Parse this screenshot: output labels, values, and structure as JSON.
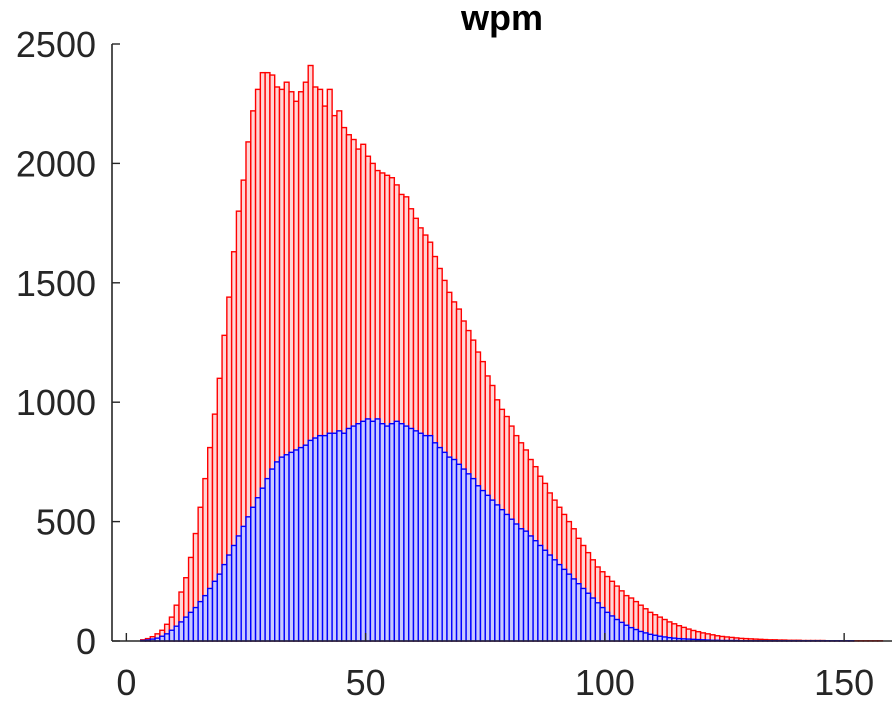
{
  "chart_data": {
    "type": "bar",
    "title": "wpm",
    "xlabel": "",
    "ylabel": "",
    "xlim": [
      -3,
      160
    ],
    "ylim": [
      0,
      2500
    ],
    "xticks": [
      0,
      50,
      100,
      150
    ],
    "yticks": [
      0,
      500,
      1000,
      1500,
      2000,
      2500
    ],
    "bin_width": 1,
    "grid": false,
    "legend": "none",
    "overlay": true,
    "x_start": 3,
    "series": [
      {
        "color": "#ff0000",
        "fill": "#ffd6d6",
        "values": [
          5,
          10,
          18,
          30,
          45,
          70,
          100,
          150,
          205,
          265,
          350,
          450,
          560,
          680,
          810,
          950,
          1100,
          1280,
          1440,
          1630,
          1800,
          1930,
          2090,
          2220,
          2310,
          2380,
          2380,
          2370,
          2320,
          2310,
          2340,
          2300,
          2260,
          2300,
          2340,
          2410,
          2320,
          2310,
          2240,
          2310,
          2200,
          2220,
          2150,
          2120,
          2100,
          2060,
          2080,
          2030,
          2000,
          1970,
          1960,
          1950,
          1940,
          1910,
          1870,
          1860,
          1810,
          1770,
          1730,
          1700,
          1670,
          1610,
          1560,
          1510,
          1460,
          1420,
          1390,
          1340,
          1300,
          1260,
          1210,
          1170,
          1110,
          1070,
          1010,
          970,
          940,
          900,
          860,
          830,
          800,
          760,
          730,
          690,
          660,
          620,
          590,
          560,
          530,
          500,
          470,
          430,
          400,
          370,
          340,
          310,
          290,
          270,
          250,
          230,
          210,
          190,
          180,
          165,
          150,
          135,
          120,
          110,
          100,
          90,
          80,
          72,
          64,
          57,
          50,
          44,
          39,
          34,
          30,
          26,
          22,
          19,
          17,
          15,
          13,
          11,
          10,
          9,
          8,
          7,
          6,
          5,
          5,
          4,
          4,
          3,
          3,
          3,
          2,
          2,
          2,
          2,
          2,
          1,
          1,
          1,
          1,
          1,
          1,
          1,
          1,
          1,
          1,
          1,
          1
        ]
      },
      {
        "color": "#0000ff",
        "fill": "#c8c8ff",
        "values": [
          2,
          4,
          8,
          12,
          20,
          30,
          45,
          62,
          80,
          100,
          120,
          140,
          165,
          190,
          220,
          250,
          280,
          320,
          360,
          400,
          440,
          480,
          520,
          560,
          600,
          640,
          680,
          720,
          750,
          770,
          780,
          790,
          800,
          810,
          820,
          840,
          850,
          860,
          860,
          870,
          870,
          880,
          870,
          890,
          900,
          910,
          920,
          930,
          920,
          930,
          910,
          900,
          910,
          920,
          910,
          900,
          890,
          880,
          870,
          860,
          860,
          830,
          810,
          790,
          770,
          760,
          740,
          720,
          700,
          680,
          650,
          630,
          610,
          590,
          570,
          550,
          530,
          510,
          490,
          470,
          460,
          440,
          420,
          400,
          380,
          360,
          340,
          320,
          300,
          280,
          260,
          240,
          220,
          200,
          180,
          160,
          140,
          120,
          105,
          90,
          78,
          66,
          56,
          48,
          40,
          34,
          28,
          24,
          20,
          17,
          14,
          12,
          10,
          9,
          8,
          7,
          6,
          5,
          4,
          3,
          3,
          2,
          2,
          2,
          2,
          1,
          1,
          1,
          1,
          1,
          1,
          1,
          1,
          1,
          1,
          1,
          1,
          1,
          1,
          1,
          1,
          1,
          1,
          1,
          1,
          1,
          1,
          1,
          1
        ]
      }
    ]
  }
}
